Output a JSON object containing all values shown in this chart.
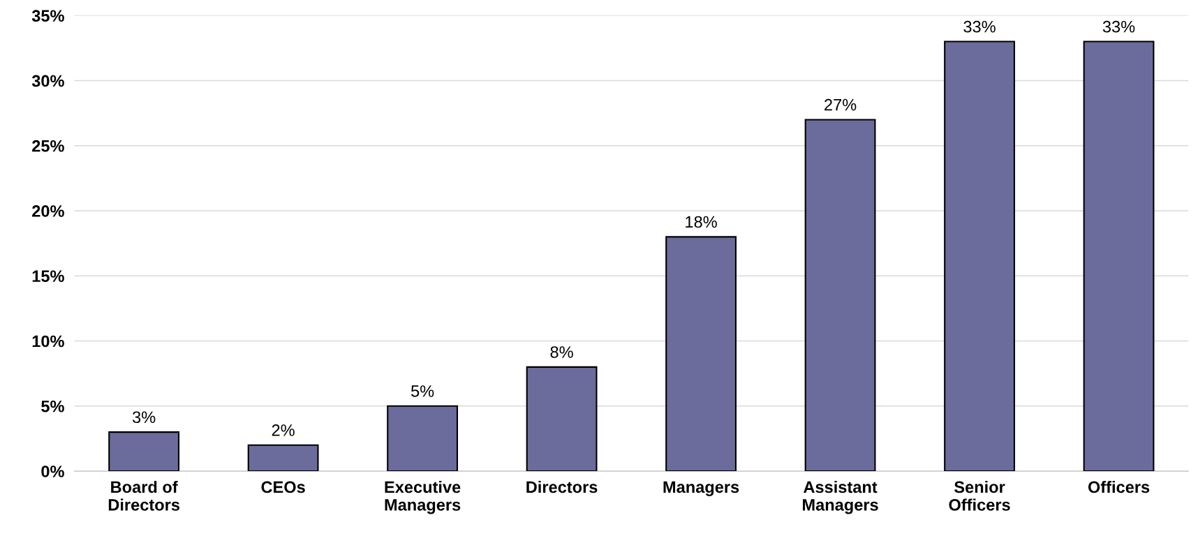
{
  "chart_data": {
    "type": "bar",
    "categories": [
      "Board of Directors",
      "CEOs",
      "Executive Managers",
      "Directors",
      "Managers",
      "Assistant Managers",
      "Senior Officers",
      "Officers"
    ],
    "values": [
      3,
      2,
      5,
      8,
      18,
      27,
      33,
      33
    ],
    "value_labels": [
      "3%",
      "2%",
      "5%",
      "8%",
      "18%",
      "27%",
      "33%",
      "33%"
    ],
    "color": "#6b6b9c",
    "ylim": [
      0,
      35
    ],
    "yticks": [
      {
        "value": 0,
        "label": "0%"
      },
      {
        "value": 5,
        "label": "5%"
      },
      {
        "value": 10,
        "label": "10%"
      },
      {
        "value": 15,
        "label": "15%"
      },
      {
        "value": 20,
        "label": "20%"
      },
      {
        "value": 25,
        "label": "25%"
      },
      {
        "value": 30,
        "label": "30%"
      },
      {
        "value": 35,
        "label": "35%"
      }
    ],
    "grid": "y",
    "legend": false
  }
}
